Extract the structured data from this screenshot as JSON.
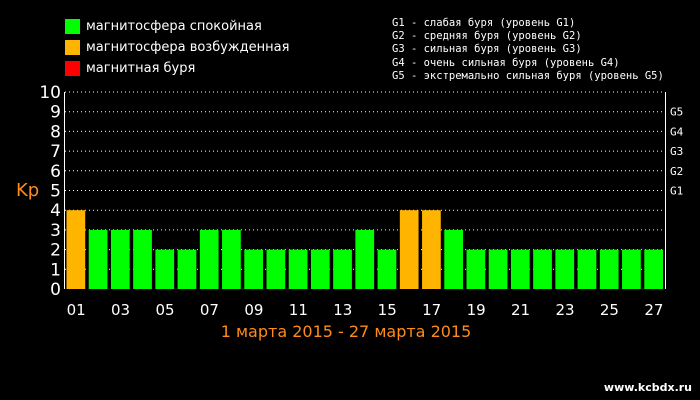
{
  "legend": {
    "quiet": {
      "label": "магнитосфера спокойная",
      "color": "#00ff00"
    },
    "disturbed": {
      "label": "магнитосфера возбужденная",
      "color": "#ffb400"
    },
    "storm": {
      "label": "магнитная буря",
      "color": "#ff0000"
    }
  },
  "g_scale": [
    "G1 - слабая буря (уровень G1)",
    "G2 - средняя буря (уровень G2)",
    "G3 - сильная буря (уровень G3)",
    "G4 - очень сильная буря (уровень G4)",
    "G5 - экстремально сильная буря (уровень G5)"
  ],
  "chart_data": {
    "type": "bar",
    "ylabel": "Kp",
    "xlabel": "1 марта 2015 - 27 марта 2015",
    "ylim": [
      0,
      10
    ],
    "yticks": [
      0,
      1,
      2,
      3,
      4,
      5,
      6,
      7,
      8,
      9,
      10
    ],
    "right_ticks": [
      {
        "label": "G1",
        "value": 5
      },
      {
        "label": "G2",
        "value": 6
      },
      {
        "label": "G3",
        "value": 7
      },
      {
        "label": "G4",
        "value": 8
      },
      {
        "label": "G5",
        "value": 9
      }
    ],
    "categories": [
      "01",
      "02",
      "03",
      "04",
      "05",
      "06",
      "07",
      "08",
      "09",
      "10",
      "11",
      "12",
      "13",
      "14",
      "15",
      "16",
      "17",
      "18",
      "19",
      "20",
      "21",
      "22",
      "23",
      "24",
      "25",
      "26",
      "27"
    ],
    "x_tick_labels": [
      "01",
      "03",
      "05",
      "07",
      "09",
      "11",
      "13",
      "15",
      "17",
      "19",
      "21",
      "23",
      "25",
      "27"
    ],
    "values": [
      4,
      3,
      3,
      3,
      2,
      2,
      3,
      3,
      2,
      2,
      2,
      2,
      2,
      3,
      2,
      4,
      4,
      3,
      2,
      2,
      2,
      2,
      2,
      2,
      2,
      2,
      2
    ],
    "bar_colors": {
      "quiet": "#00ff00",
      "disturbed": "#ffb400"
    },
    "grid": true
  },
  "watermark": "www.kcbdx.ru"
}
